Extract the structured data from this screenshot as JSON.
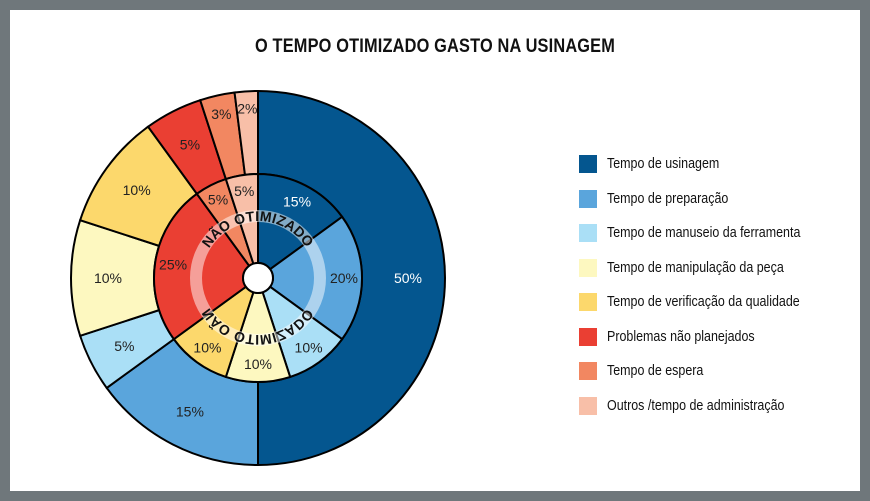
{
  "chart_data": {
    "type": "pie",
    "title": "O TEMPO OTIMIZADO GASTO NA USINAGEM",
    "categories": [
      "Tempo de usinagem",
      "Tempo de preparação",
      "Tempo de manuseio da ferramenta",
      "Tempo de manipulação da peça",
      "Tempo de verificação da qualidade",
      "Problemas não planejados",
      "Tempo de espera",
      "Outros /tempo de administração"
    ],
    "colors": [
      "#04568f",
      "#5aa5dc",
      "#aadff6",
      "#fdf8c0",
      "#fcd86c",
      "#ea3f33",
      "#f28761",
      "#f8bfa8"
    ],
    "series": [
      {
        "name": "OTIMIZADO",
        "values": [
          50,
          15,
          5,
          10,
          10,
          5,
          3,
          2
        ],
        "labels": [
          "50%",
          "15%",
          "5%",
          "10%",
          "10%",
          "5%",
          "3%",
          "2%"
        ]
      },
      {
        "name": "NÃO OTIMIZADO",
        "values": [
          15,
          20,
          10,
          10,
          10,
          25,
          5,
          5
        ],
        "labels": [
          "15%",
          "20%",
          "10%",
          "10%",
          "10%",
          "25%",
          "5%",
          "5%"
        ]
      }
    ],
    "inner_ring_label": "NÃO OTIMIZADO",
    "legend_position": "right"
  }
}
